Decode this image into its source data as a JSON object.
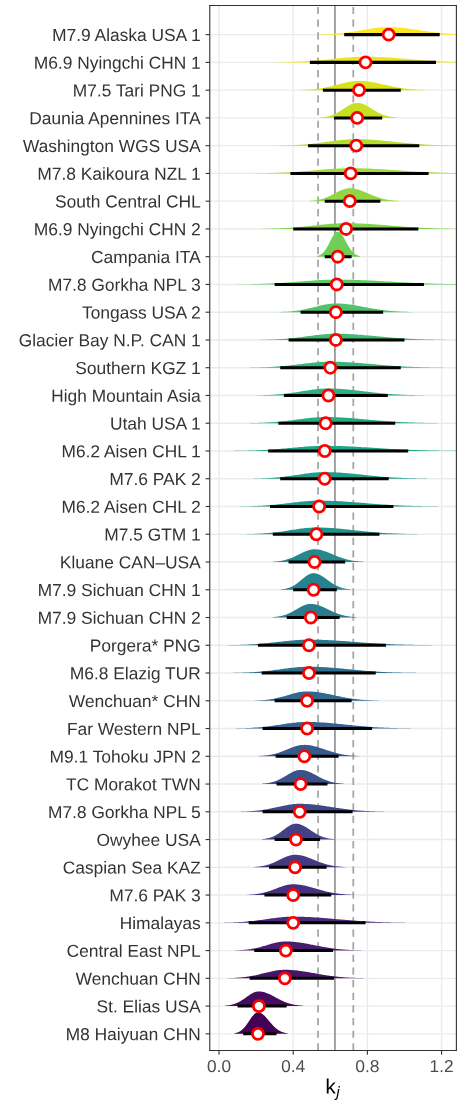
{
  "chart_data": {
    "type": "scatter",
    "orientation": "horizontal",
    "xlabel": "k$_{j}$",
    "categories": [
      "M7.9 Alaska USA 1",
      "M6.9 Nyingchi CHN 1",
      "M7.5 Tari PNG 1",
      "Daunia Apennines ITA",
      "Washington WGS USA",
      "M7.8 Kaikoura NZL 1",
      "South Central CHL",
      "M6.9 Nyingchi CHN 2",
      "Campania ITA",
      "M7.8 Gorkha NPL 3",
      "Tongass USA 2",
      "Glacier Bay N.P. CAN 1",
      "Southern KGZ 1",
      "High Mountain Asia",
      "Utah USA 1",
      "M6.2 Aisen CHL 1",
      "M7.6 PAK 2",
      "M6.2 Aisen CHL 2",
      "M7.5 GTM 1",
      "Kluane CAN–USA",
      "M7.9 Sichuan CHN 1",
      "M7.9 Sichuan CHN 2",
      "Porgera* PNG",
      "M6.8 Elazig TUR",
      "Wenchuan* CHN",
      "Far Western NPL",
      "M9.1 Tohoku JPN 2",
      "TC Morakot TWN",
      "M7.8 Gorkha NPL 5",
      "Owyhee USA",
      "Caspian Sea KAZ",
      "M7.6 PAK 3",
      "Himalayas",
      "Central East NPL",
      "Wenchuan CHN",
      "St. Elias USA",
      "M8 Haiyuan CHN"
    ],
    "values": [
      0.915,
      0.79,
      0.755,
      0.745,
      0.74,
      0.71,
      0.705,
      0.685,
      0.64,
      0.635,
      0.63,
      0.63,
      0.6,
      0.59,
      0.575,
      0.57,
      0.57,
      0.54,
      0.525,
      0.515,
      0.51,
      0.495,
      0.485,
      0.485,
      0.475,
      0.475,
      0.46,
      0.44,
      0.435,
      0.415,
      0.41,
      0.4,
      0.4,
      0.36,
      0.355,
      0.215,
      0.21
    ],
    "errors": [
      [
        0.675,
        1.19
      ],
      [
        0.49,
        1.17
      ],
      [
        0.56,
        0.98
      ],
      [
        0.62,
        0.88
      ],
      [
        0.48,
        1.08
      ],
      [
        0.385,
        1.13
      ],
      [
        0.57,
        0.87
      ],
      [
        0.4,
        1.075
      ],
      [
        0.57,
        0.715
      ],
      [
        0.3,
        1.105
      ],
      [
        0.44,
        0.885
      ],
      [
        0.375,
        1.0
      ],
      [
        0.33,
        0.98
      ],
      [
        0.35,
        0.91
      ],
      [
        0.32,
        0.95
      ],
      [
        0.265,
        1.02
      ],
      [
        0.33,
        0.915
      ],
      [
        0.275,
        0.94
      ],
      [
        0.29,
        0.865
      ],
      [
        0.375,
        0.68
      ],
      [
        0.4,
        0.635
      ],
      [
        0.365,
        0.65
      ],
      [
        0.21,
        0.9
      ],
      [
        0.23,
        0.845
      ],
      [
        0.3,
        0.715
      ],
      [
        0.235,
        0.825
      ],
      [
        0.305,
        0.645
      ],
      [
        0.31,
        0.585
      ],
      [
        0.235,
        0.72
      ],
      [
        0.3,
        0.545
      ],
      [
        0.27,
        0.58
      ],
      [
        0.245,
        0.605
      ],
      [
        0.16,
        0.79
      ],
      [
        0.19,
        0.615
      ],
      [
        0.165,
        0.62
      ],
      [
        0.1,
        0.365
      ],
      [
        0.13,
        0.31
      ]
    ],
    "color": "#ff0000",
    "xlim": [
      -0.05,
      1.28
    ],
    "xticks": [
      {
        "value": 0,
        "label": "0.0"
      },
      0.4,
      0.8,
      1.2
    ],
    "ref_lines": [
      {
        "axis": "x",
        "value": 0.534,
        "color": "#a6a6a6",
        "line_style": "dashed"
      },
      {
        "axis": "x",
        "value": 0.625,
        "color": "#999999",
        "line_style": "solid"
      },
      {
        "axis": "x",
        "value": 0.724,
        "color": "#a6a6a6",
        "line_style": "dashed"
      }
    ],
    "grid": true,
    "marker": "circle"
  }
}
